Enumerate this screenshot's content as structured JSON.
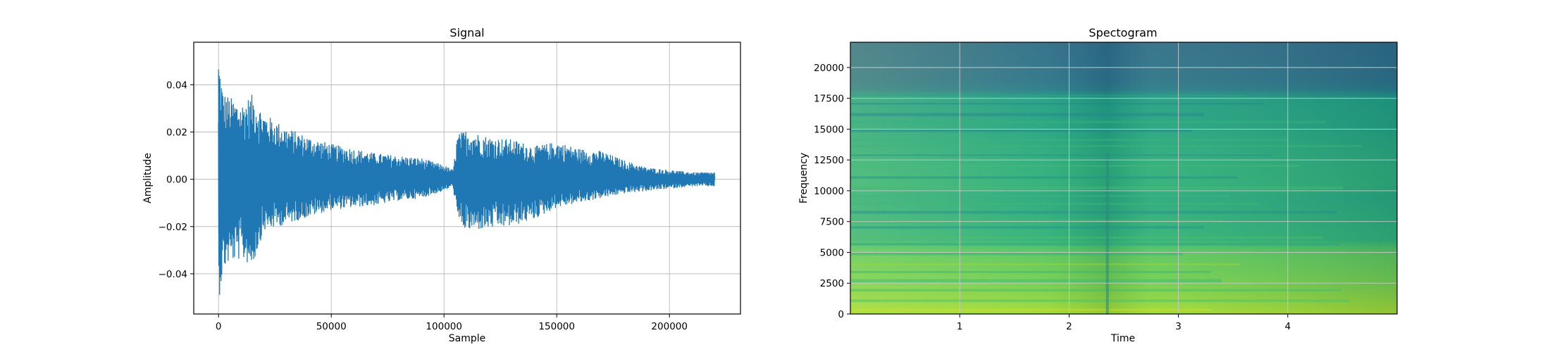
{
  "chart_data": [
    {
      "type": "line",
      "title": "Signal",
      "xlabel": "Sample",
      "ylabel": "Amplitude",
      "xlim": [
        -11000,
        231500
      ],
      "ylim": [
        -0.057,
        0.058
      ],
      "xticks": [
        0,
        50000,
        100000,
        150000,
        200000
      ],
      "xtick_labels": [
        "0",
        "50000",
        "100000",
        "150000",
        "200000"
      ],
      "yticks": [
        -0.04,
        -0.02,
        0.0,
        0.02,
        0.04
      ],
      "ytick_labels": [
        "−0.04",
        "−0.02",
        "0.00",
        "0.02",
        "0.04"
      ],
      "grid": true,
      "series_color": "#1f77b4",
      "envelope": {
        "x": [
          0,
          2000,
          5000,
          10000,
          15000,
          20000,
          30000,
          40000,
          50000,
          60000,
          70000,
          80000,
          90000,
          100000,
          104000,
          106000,
          110000,
          120000,
          130000,
          140000,
          150000,
          160000,
          170000,
          180000,
          190000,
          200000,
          210000,
          220000
        ],
        "upper": [
          0.053,
          0.037,
          0.035,
          0.032,
          0.036,
          0.028,
          0.022,
          0.018,
          0.015,
          0.013,
          0.011,
          0.01,
          0.009,
          0.006,
          0.004,
          0.019,
          0.021,
          0.018,
          0.017,
          0.014,
          0.016,
          0.013,
          0.012,
          0.008,
          0.005,
          0.004,
          0.003,
          0.003
        ],
        "lower": [
          -0.052,
          -0.039,
          -0.035,
          -0.034,
          -0.037,
          -0.022,
          -0.019,
          -0.016,
          -0.013,
          -0.012,
          -0.011,
          -0.009,
          -0.008,
          -0.005,
          -0.003,
          -0.018,
          -0.022,
          -0.021,
          -0.02,
          -0.017,
          -0.012,
          -0.01,
          -0.008,
          -0.006,
          -0.005,
          -0.004,
          -0.003,
          -0.003
        ]
      }
    },
    {
      "type": "heatmap",
      "title": "Spectogram",
      "xlabel": "Time",
      "ylabel": "Frequency",
      "xlim": [
        0,
        5.0
      ],
      "ylim": [
        0,
        22050
      ],
      "xticks": [
        1,
        2,
        3,
        4
      ],
      "xtick_labels": [
        "1",
        "2",
        "3",
        "4"
      ],
      "yticks": [
        0,
        2500,
        5000,
        7500,
        10000,
        12500,
        15000,
        17500,
        20000
      ],
      "ytick_labels": [
        "0",
        "2500",
        "5000",
        "7500",
        "10000",
        "12500",
        "15000",
        "17500",
        "20000"
      ],
      "grid": true,
      "colormap": "viridis",
      "onset_time": 2.35,
      "intensity_profile": {
        "frequency": [
          0,
          1000,
          2000,
          3000,
          4000,
          5000,
          5500,
          6000,
          8000,
          9500,
          10500,
          12000,
          13500,
          15000,
          16500,
          17500,
          18200,
          19000,
          22050
        ],
        "level": [
          0.86,
          0.83,
          0.8,
          0.78,
          0.76,
          0.74,
          0.7,
          0.64,
          0.62,
          0.6,
          0.63,
          0.62,
          0.6,
          0.58,
          0.57,
          0.56,
          0.42,
          0.38,
          0.36
        ]
      }
    }
  ]
}
